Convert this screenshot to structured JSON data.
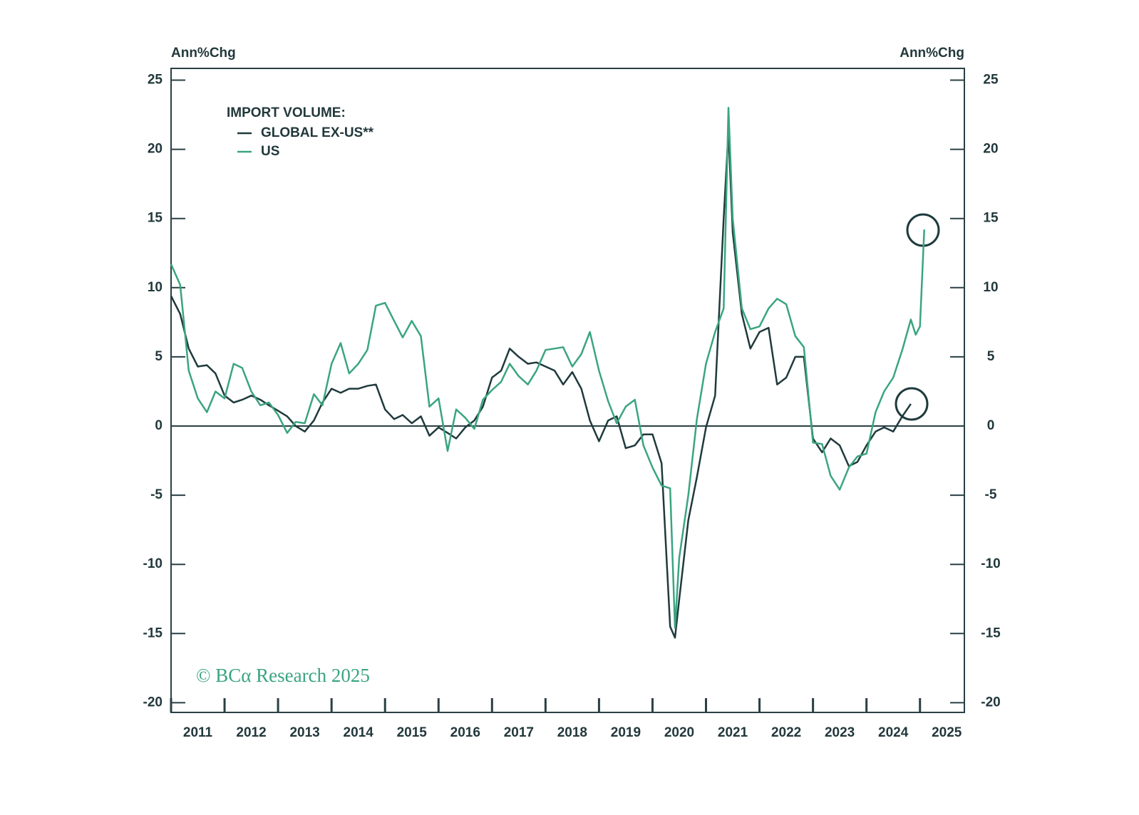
{
  "chart_data": {
    "type": "line",
    "y_label": "Ann%Chg",
    "y2_label": "Ann%Chg",
    "legend_title": "IMPORT VOLUME:",
    "legend": "upper left",
    "source": "© BCα Research 2025",
    "grid": false,
    "xlim": [
      2011,
      2025.83
    ],
    "xticks": [
      2011,
      2012,
      2013,
      2014,
      2015,
      2016,
      2017,
      2018,
      2019,
      2020,
      2021,
      2022,
      2023,
      2024,
      2025
    ],
    "ylim": [
      -20.7,
      25.85
    ],
    "yticks": [
      25,
      20,
      15,
      10,
      5,
      0,
      -5,
      -10,
      -15,
      -20
    ],
    "y2lim": [
      -20.7,
      25.85
    ],
    "y2ticks": [
      25,
      20,
      15,
      10,
      5,
      0,
      -5,
      -10,
      -15,
      -20
    ],
    "x": [
      2011,
      2011.17,
      2011.33,
      2011.5,
      2011.67,
      2011.83,
      2012,
      2012.17,
      2012.33,
      2012.5,
      2012.67,
      2012.83,
      2013,
      2013.17,
      2013.33,
      2013.5,
      2013.67,
      2013.83,
      2014,
      2014.17,
      2014.33,
      2014.5,
      2014.67,
      2014.83,
      2015,
      2015.17,
      2015.33,
      2015.5,
      2015.67,
      2015.83,
      2016,
      2016.17,
      2016.33,
      2016.5,
      2016.67,
      2016.83,
      2017,
      2017.17,
      2017.33,
      2017.5,
      2017.67,
      2017.83,
      2018,
      2018.17,
      2018.33,
      2018.5,
      2018.67,
      2018.83,
      2019,
      2019.17,
      2019.33,
      2019.5,
      2019.67,
      2019.83,
      2020,
      2020.17,
      2020.33,
      2020.42,
      2020.5,
      2020.67,
      2020.83,
      2021,
      2021.17,
      2021.33,
      2021.42,
      2021.5,
      2021.67,
      2021.83,
      2022,
      2022.17,
      2022.33,
      2022.5,
      2022.67,
      2022.83,
      2023,
      2023.17,
      2023.33,
      2023.5,
      2023.67,
      2023.83,
      2024,
      2024.17,
      2024.33,
      2024.5,
      2024.67,
      2024.83,
      2024.92,
      2025,
      2025.08
    ],
    "series": [
      {
        "name": "GLOBAL EX-US**",
        "color": "#1f3a3d",
        "values": [
          9.4,
          8.1,
          5.6,
          4.3,
          4.4,
          3.8,
          2.2,
          1.7,
          1.9,
          2.2,
          1.9,
          1.5,
          1.1,
          0.7,
          0,
          -0.4,
          0.4,
          1.7,
          2.7,
          2.4,
          2.7,
          2.7,
          2.9,
          3.0,
          1.2,
          0.5,
          0.8,
          0.2,
          0.7,
          -0.7,
          -0.1,
          -0.5,
          -0.9,
          -0.1,
          0.4,
          1.4,
          3.5,
          4.0,
          5.6,
          5.0,
          4.5,
          4.6,
          4.3,
          4.0,
          3.0,
          3.9,
          2.7,
          0.4,
          -1.1,
          0.4,
          0.7,
          -1.6,
          -1.4,
          -0.6,
          -0.6,
          -2.7,
          -14.5,
          -15.3,
          -12.5,
          -6.8,
          -3.7,
          -0.1,
          2.2,
          15,
          21.3,
          14,
          8.1,
          5.6,
          6.8,
          7.1,
          3.0,
          3.5,
          5.0,
          5.0,
          -0.9,
          -1.9,
          -0.9,
          -1.4,
          -2.9,
          -2.6,
          -1.4,
          -0.4,
          -0.1,
          -0.4,
          0.7,
          1.6,
          null,
          null,
          null
        ]
      },
      {
        "name": "US",
        "color": "#3aa57f",
        "values": [
          11.7,
          10.2,
          4.0,
          2.0,
          1.0,
          2.5,
          2.0,
          4.5,
          4.2,
          2.5,
          1.5,
          1.7,
          0.8,
          -0.5,
          0.3,
          0.2,
          2.3,
          1.5,
          4.5,
          6.0,
          3.8,
          4.5,
          5.5,
          8.7,
          8.9,
          7.6,
          6.4,
          7.6,
          6.5,
          1.4,
          2.0,
          -1.8,
          1.2,
          0.6,
          -0.2,
          1.9,
          2.6,
          3.2,
          4.5,
          3.6,
          3.0,
          4.0,
          5.5,
          5.6,
          5.7,
          4.3,
          5.2,
          6.8,
          4.0,
          1.8,
          0.2,
          1.4,
          1.9,
          -1.4,
          -3.0,
          -4.3,
          -4.5,
          -14.6,
          -9.5,
          -5,
          0.5,
          4.5,
          6.8,
          8.5,
          23.0,
          15,
          8.5,
          7.0,
          7.2,
          8.5,
          9.2,
          8.8,
          6.5,
          5.7,
          -1.2,
          -1.3,
          -3.6,
          -4.6,
          -3.0,
          -2.2,
          -2.0,
          1.0,
          2.5,
          3.5,
          5.5,
          7.7,
          6.6,
          7.2,
          14.2
        ]
      }
    ]
  }
}
